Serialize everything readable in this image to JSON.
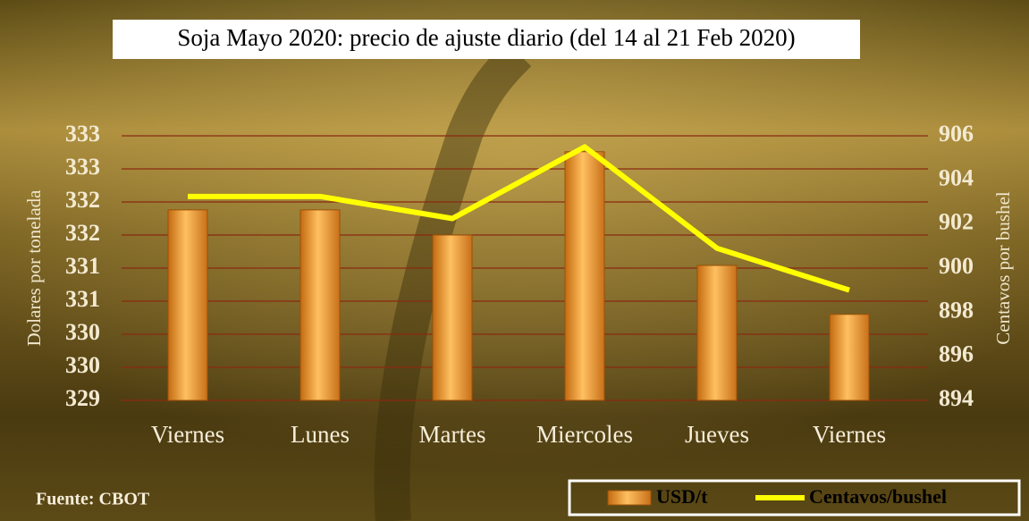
{
  "chart_data": {
    "type": "combo",
    "title": "Soja Mayo 2020: precio de ajuste diario (del 14 al 21 Feb 2020)",
    "y_label": "Dolares por tonelada",
    "y2_label": "Centavos por bushel",
    "source": "Fuente: CBOT",
    "categories": [
      "Viernes",
      "Lunes",
      "Martes",
      "Miercoles",
      "Jueves",
      "Viernes"
    ],
    "series": [
      {
        "name": "USD/t",
        "type": "bar",
        "color": "#f0a030",
        "values": [
          331.88,
          331.88,
          331.5,
          332.76,
          331.04,
          330.3
        ]
      },
      {
        "name": "Centavos/bushel",
        "type": "line",
        "axis": "y2",
        "color": "#ffff00",
        "values": [
          903.25,
          903.25,
          902.25,
          905.5,
          900.9,
          899
        ]
      }
    ],
    "ylim": [
      329,
      333
    ],
    "yticks": [
      329,
      {
        "value": 329.5,
        "label": "330"
      },
      330,
      {
        "value": 330.5,
        "label": "331"
      },
      331,
      {
        "value": 331.5,
        "label": "332"
      },
      332,
      {
        "value": 332.5,
        "label": "333"
      },
      333
    ],
    "y2lim": [
      894,
      906
    ],
    "y2ticks": [
      894,
      896,
      898,
      900,
      902,
      904,
      906
    ],
    "grid": true,
    "legend": "bottom-right"
  }
}
